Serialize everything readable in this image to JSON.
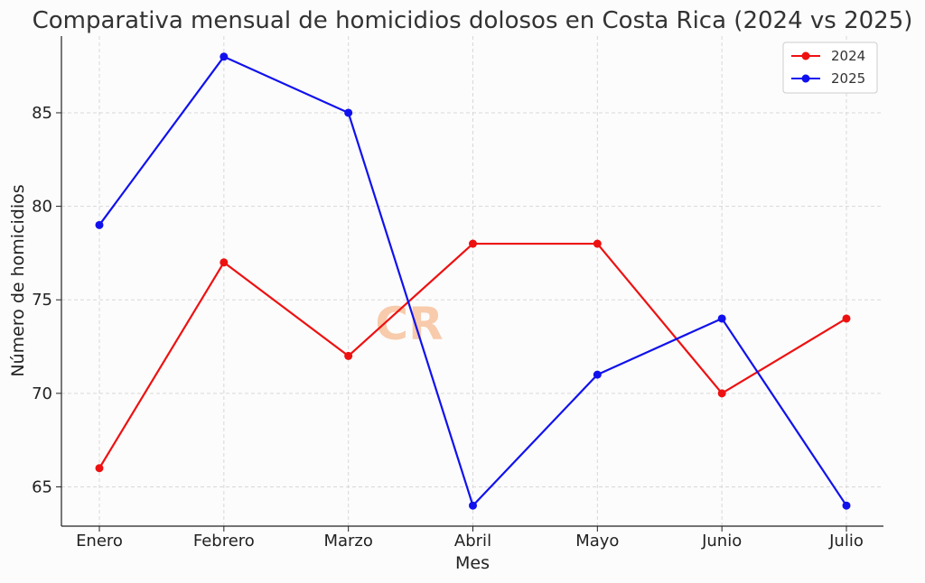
{
  "chart_data": {
    "type": "line",
    "title": "Comparativa mensual de homicidios dolosos en Costa Rica (2024 vs 2025)",
    "xlabel": "Mes",
    "ylabel": "Número de homicidios",
    "categories": [
      "Enero",
      "Febrero",
      "Marzo",
      "Abril",
      "Mayo",
      "Junio",
      "Julio"
    ],
    "series": [
      {
        "name": "2024",
        "color": "#ee1111",
        "values": [
          66,
          77,
          72,
          78,
          78,
          70,
          74
        ]
      },
      {
        "name": "2025",
        "color": "#1111ee",
        "values": [
          79,
          88,
          85,
          64,
          71,
          74,
          64
        ]
      }
    ],
    "ylim": [
      62.9,
      89.1
    ],
    "yticks": [
      65,
      70,
      75,
      80,
      85
    ],
    "grid": true,
    "legend_position": "top-right",
    "watermark": "CR"
  }
}
